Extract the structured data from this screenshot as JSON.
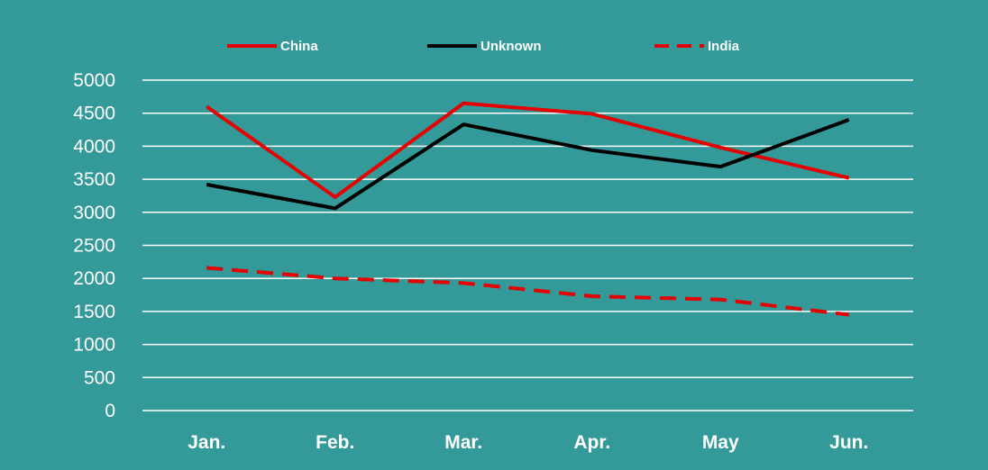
{
  "chart_data": {
    "type": "line",
    "categories": [
      "Jan.",
      "Feb.",
      "Mar.",
      "Apr.",
      "May",
      "Jun."
    ],
    "series": [
      {
        "name": "China",
        "values": [
          4600,
          3230,
          4650,
          4490,
          3980,
          3520
        ],
        "color": "#e60000",
        "dash": "solid"
      },
      {
        "name": "Unknown",
        "values": [
          3420,
          3060,
          4330,
          3940,
          3690,
          4400
        ],
        "color": "#000000",
        "dash": "solid"
      },
      {
        "name": "India",
        "values": [
          2160,
          2000,
          1930,
          1730,
          1680,
          1450
        ],
        "color": "#e60000",
        "dash": "dashed"
      }
    ],
    "yticks": [
      "0",
      "500",
      "1000",
      "1500",
      "2000",
      "2500",
      "3000",
      "3500",
      "4000",
      "4500",
      "5000"
    ],
    "ylim": [
      0,
      5000
    ],
    "grid": true,
    "legend_position": "top",
    "background_color": "#339999",
    "title": "",
    "xlabel": "",
    "ylabel": ""
  }
}
